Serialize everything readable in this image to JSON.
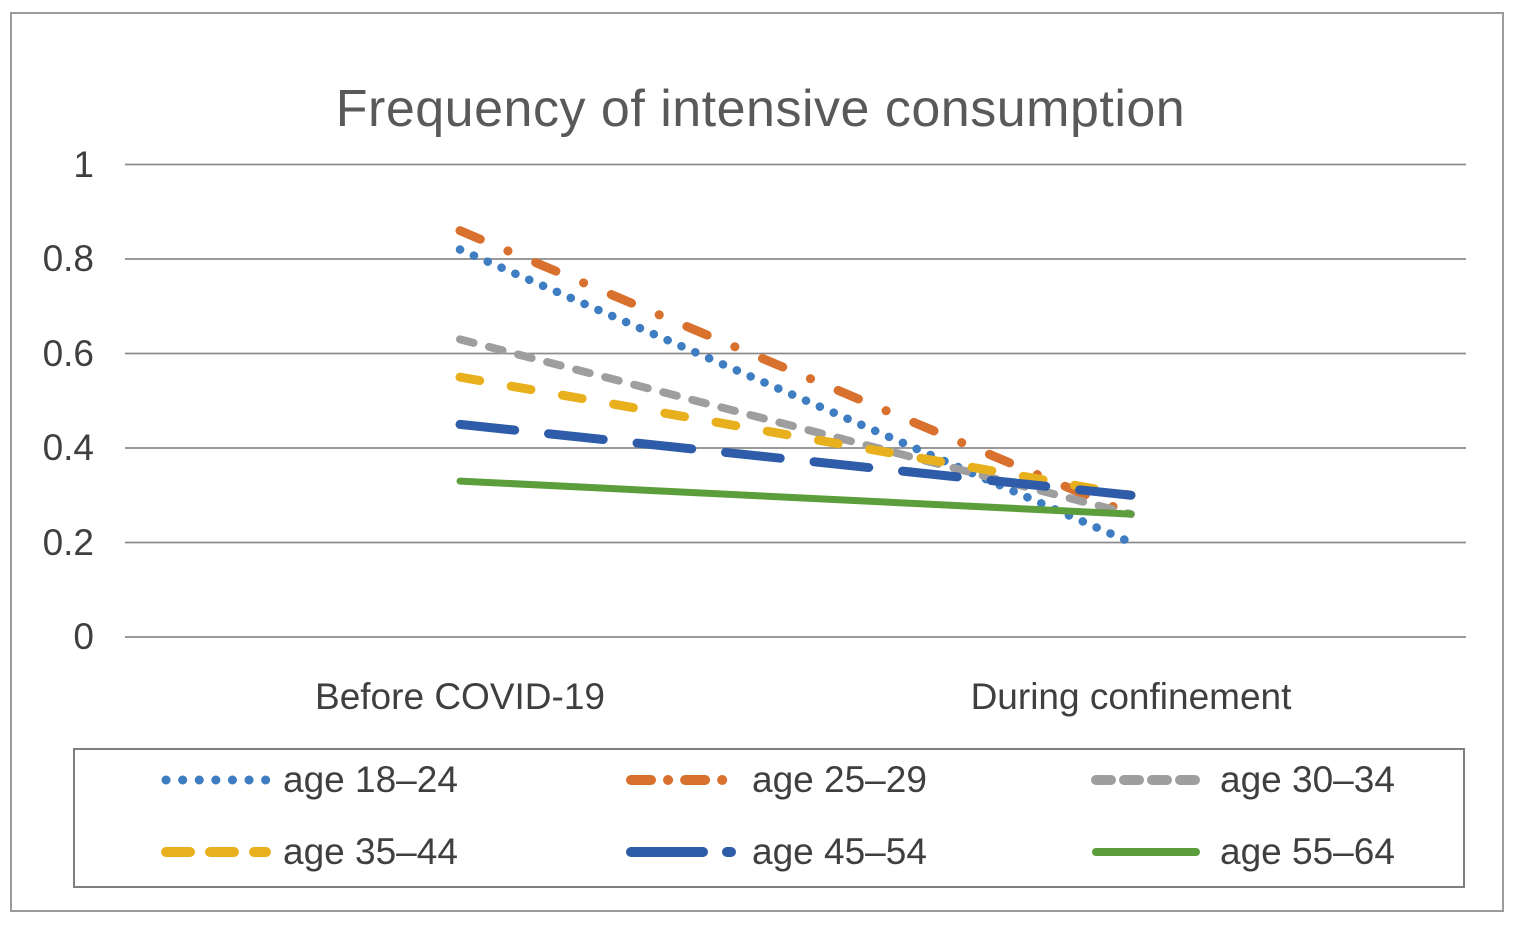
{
  "chart_data": {
    "type": "line",
    "title": "Frequency of intensive consumption",
    "categories": [
      "Before COVID-19",
      "During confinement"
    ],
    "y_ticks": [
      1,
      0.8,
      0.6,
      0.4,
      0.2,
      0
    ],
    "y_tick_labels": [
      "1",
      "0.8",
      "0.6",
      "0.4",
      "0.2",
      "0"
    ],
    "ylim": [
      0,
      1
    ],
    "grid": "horizontal",
    "legend_position": "bottom",
    "series": [
      {
        "name": "age 18–24",
        "color": "#3E7DC1",
        "style": "dotted",
        "values": [
          0.82,
          0.2
        ]
      },
      {
        "name": "age 25–29",
        "color": "#D9712E",
        "style": "dash-dot",
        "values": [
          0.86,
          0.26
        ]
      },
      {
        "name": "age 30–34",
        "color": "#9E9E9E",
        "style": "dashed",
        "values": [
          0.63,
          0.26
        ]
      },
      {
        "name": "age 35–44",
        "color": "#E9B01E",
        "style": "long-dash",
        "values": [
          0.55,
          0.3
        ]
      },
      {
        "name": "age 45–54",
        "color": "#2E5CA8",
        "style": "longer-dash",
        "values": [
          0.45,
          0.3
        ]
      },
      {
        "name": "age 55–64",
        "color": "#5C9E3B",
        "style": "solid",
        "values": [
          0.33,
          0.26
        ]
      }
    ],
    "gridline_color": "#8c8c8c",
    "text_color": "#3f3f3f",
    "title_color": "#595959"
  }
}
